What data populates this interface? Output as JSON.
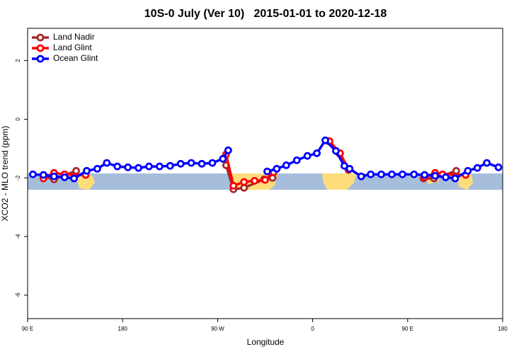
{
  "chart_data": {
    "type": "line",
    "title": "10S-0 July (Ver 10)   2015-01-01 to 2020-12-18",
    "x_label": "Longitude",
    "y_label": "XCO2 - MLO trend (ppm)",
    "xlim": [
      -270,
      180
    ],
    "xticks": [
      {
        "value": -270,
        "label": "90 E"
      },
      {
        "value": -180,
        "label": "180"
      },
      {
        "value": -90,
        "label": "90 W"
      },
      0,
      {
        "value": 90,
        "label": "90 E"
      },
      180
    ],
    "ylim": [
      -6.8,
      3.1
    ],
    "yticks": [
      -6,
      -4,
      -2,
      0,
      2
    ],
    "grid": false,
    "legend": "top-left",
    "series": [
      {
        "name": "Land Nadir",
        "color": "#a52a2a",
        "x": [
          -255,
          -245,
          -224,
          null,
          -82,
          -75,
          -65,
          -46,
          -38,
          null,
          15,
          25,
          34,
          null,
          105,
          115,
          136
        ],
        "values": [
          -1.95,
          -2.05,
          -1.76,
          null,
          -1.57,
          -2.39,
          -2.34,
          -2.05,
          -2.0,
          null,
          -0.75,
          -1.16,
          -1.73,
          null,
          -2.02,
          -2.02,
          -1.76
        ]
      },
      {
        "name": "Land Glint",
        "color": "#ff0000",
        "x": [
          -255,
          -245,
          -235,
          -215,
          null,
          -82,
          -75,
          -65,
          -55,
          -45,
          -37,
          null,
          16,
          26,
          34,
          null,
          106,
          116,
          123,
          145
        ],
        "values": [
          -2.02,
          -1.83,
          -1.88,
          -1.9,
          null,
          -1.2,
          -2.27,
          -2.14,
          -2.1,
          -2.07,
          -1.81,
          null,
          -0.75,
          -1.16,
          -1.71,
          null,
          -1.98,
          -1.83,
          -1.88,
          -1.9
        ]
      },
      {
        "name": "Ocean Glint",
        "color": "#0000ff",
        "x": [
          -265,
          -255,
          -245,
          -235,
          -226,
          -214,
          -204,
          -195,
          -185,
          -175,
          -165,
          -155,
          -145,
          -135,
          -125,
          -115,
          -105,
          -95,
          -85,
          -80,
          null,
          -43,
          -34,
          -25,
          -15,
          -5,
          4,
          12,
          22,
          30,
          35,
          46,
          55,
          65,
          75,
          85,
          96,
          106,
          116,
          126,
          135,
          147,
          156,
          165,
          176
        ],
        "values": [
          -1.88,
          -1.9,
          -1.95,
          -1.98,
          -2.02,
          -1.76,
          -1.69,
          -1.49,
          -1.61,
          -1.64,
          -1.66,
          -1.61,
          -1.61,
          -1.59,
          -1.52,
          -1.49,
          -1.52,
          -1.49,
          -1.35,
          -1.06,
          null,
          -1.78,
          -1.69,
          -1.57,
          -1.4,
          -1.25,
          -1.16,
          -0.72,
          -1.08,
          -1.59,
          -1.69,
          -1.95,
          -1.88,
          -1.88,
          -1.88,
          -1.88,
          -1.88,
          -1.9,
          -1.93,
          -1.98,
          -2.02,
          -1.76,
          -1.66,
          -1.49,
          -1.64
        ]
      }
    ]
  }
}
